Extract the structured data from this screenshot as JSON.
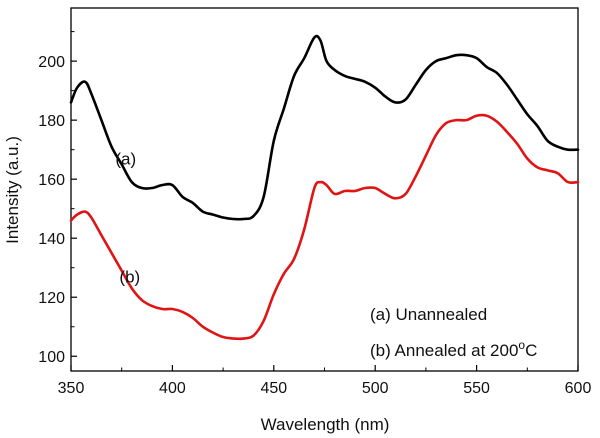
{
  "chart_data": {
    "type": "line",
    "title": "",
    "xlabel": "Wavelength (nm)",
    "ylabel": "Intensity (a.u.)",
    "xlim": [
      350,
      600
    ],
    "ylim": [
      95,
      218
    ],
    "x_ticks": [
      350,
      400,
      450,
      500,
      550,
      600
    ],
    "y_ticks": [
      100,
      120,
      140,
      160,
      180,
      200
    ],
    "series": [
      {
        "name": "(a) Unannealed",
        "label": "(a)",
        "color": "#000000",
        "x": [
          350,
          353,
          357,
          360,
          365,
          370,
          375,
          380,
          385,
          390,
          395,
          400,
          405,
          410,
          415,
          420,
          425,
          430,
          435,
          440,
          445,
          450,
          455,
          460,
          465,
          470,
          473,
          476,
          480,
          485,
          490,
          495,
          500,
          505,
          510,
          515,
          520,
          525,
          530,
          535,
          540,
          545,
          550,
          555,
          560,
          565,
          570,
          575,
          580,
          585,
          590,
          595,
          600
        ],
        "y": [
          186,
          191,
          193,
          189,
          180,
          171,
          165,
          159,
          157,
          157,
          158,
          158,
          154,
          152,
          149,
          148,
          147,
          146.5,
          146.5,
          147.5,
          154,
          173,
          184,
          195,
          201,
          208,
          207,
          200,
          197,
          195,
          194,
          193,
          191,
          188,
          186,
          187,
          192,
          197,
          200,
          201,
          202,
          202,
          201,
          198,
          196,
          192,
          187,
          182,
          178,
          173,
          171,
          170,
          170
        ]
      },
      {
        "name": "(b) Annealed at 200°C",
        "label": "(b)",
        "color": "#e01414",
        "x": [
          350,
          353,
          357,
          360,
          365,
          370,
          375,
          380,
          385,
          390,
          395,
          400,
          405,
          410,
          415,
          420,
          425,
          430,
          435,
          440,
          445,
          450,
          455,
          460,
          465,
          470,
          473,
          476,
          480,
          485,
          490,
          495,
          500,
          505,
          510,
          515,
          520,
          525,
          530,
          535,
          540,
          545,
          550,
          555,
          560,
          565,
          570,
          575,
          580,
          585,
          590,
          595,
          600
        ],
        "y": [
          146,
          148,
          149,
          147,
          141,
          135,
          129,
          123,
          119,
          117,
          116,
          116,
          115,
          113,
          110,
          108,
          106.5,
          106,
          106,
          107,
          112,
          121,
          128,
          133,
          143,
          157,
          159,
          158,
          155,
          156,
          156,
          157,
          157,
          155,
          153.5,
          155,
          161,
          168,
          175,
          179,
          180,
          180,
          181.5,
          181.5,
          179.5,
          176,
          172,
          167,
          164,
          163,
          162,
          159,
          159
        ]
      }
    ],
    "annotations": [
      {
        "text": "(a)",
        "x": 377,
        "y": 167
      },
      {
        "text": "(b)",
        "x": 379,
        "y": 127
      }
    ],
    "legend": {
      "placement": "bottom-right",
      "line1": "(a) Unannealed",
      "line2_prefix": "(b) Annealed at 200",
      "line2_sup": "o",
      "line2_suffix": "C"
    }
  }
}
